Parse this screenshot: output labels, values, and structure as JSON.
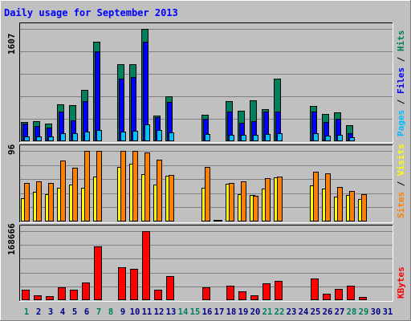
{
  "title": "Daily usage for September 2013",
  "colors": {
    "hits": "#00805c",
    "files": "#0000ff",
    "pages": "#00c0ff",
    "visits": "#ffff00",
    "sites": "#ff8000",
    "kbytes": "#ff0000",
    "weekend_day_label": "#00805c",
    "weekday_label": "#000080"
  },
  "chart_data": [
    {
      "type": "bar",
      "panel": "hits-files-pages",
      "ymax_label": "1607",
      "ymax": 1607,
      "legend": [
        "Pages",
        "Files",
        "Hits"
      ],
      "categories": [
        "1",
        "2",
        "3",
        "4",
        "5",
        "6",
        "7",
        "8",
        "9",
        "10",
        "11",
        "12",
        "13",
        "14",
        "15",
        "16",
        "17",
        "18",
        "19",
        "20",
        "21",
        "22",
        "23",
        "24",
        "25",
        "26",
        "27",
        "28",
        "29",
        "30",
        "31"
      ],
      "weekend_days": [
        1,
        7,
        8,
        14,
        15,
        21,
        22,
        28,
        29
      ],
      "series": [
        {
          "name": "Hits",
          "values": [
            270,
            290,
            250,
            530,
            520,
            730,
            1420,
            0,
            1100,
            1100,
            1607,
            370,
            640,
            0,
            0,
            380,
            0,
            570,
            440,
            590,
            460,
            900,
            0,
            0,
            500,
            390,
            410,
            230,
            0,
            0,
            0
          ]
        },
        {
          "name": "Files",
          "values": [
            250,
            220,
            200,
            420,
            300,
            570,
            1290,
            0,
            900,
            920,
            1420,
            340,
            560,
            0,
            0,
            320,
            0,
            420,
            260,
            290,
            420,
            430,
            0,
            0,
            430,
            270,
            320,
            120,
            0,
            0,
            0
          ]
        },
        {
          "name": "Pages",
          "values": [
            70,
            70,
            70,
            120,
            120,
            140,
            160,
            0,
            140,
            150,
            240,
            160,
            130,
            0,
            0,
            100,
            5,
            90,
            90,
            90,
            100,
            110,
            0,
            0,
            110,
            80,
            90,
            60,
            0,
            0,
            0
          ]
        }
      ]
    },
    {
      "type": "bar",
      "panel": "visits-sites",
      "ymax_label": "96",
      "ymax": 96,
      "legend": [
        "Sites",
        "Visits"
      ],
      "categories": [
        "1",
        "2",
        "3",
        "4",
        "5",
        "6",
        "7",
        "8",
        "9",
        "10",
        "11",
        "12",
        "13",
        "14",
        "15",
        "16",
        "17",
        "18",
        "19",
        "20",
        "21",
        "22",
        "23",
        "24",
        "25",
        "26",
        "27",
        "28",
        "29",
        "30",
        "31"
      ],
      "series": [
        {
          "name": "Visits",
          "values": [
            32,
            40,
            37,
            46,
            50,
            46,
            61,
            0,
            74,
            79,
            64,
            50,
            62,
            0,
            0,
            46,
            2,
            51,
            37,
            36,
            45,
            60,
            0,
            0,
            49,
            45,
            34,
            36,
            30,
            0,
            0
          ]
        },
        {
          "name": "Sites",
          "values": [
            52,
            55,
            52,
            83,
            73,
            96,
            96,
            0,
            96,
            96,
            94,
            84,
            63,
            0,
            0,
            74,
            2,
            52,
            54,
            35,
            59,
            61,
            0,
            0,
            68,
            65,
            47,
            41,
            37,
            0,
            0
          ]
        }
      ]
    },
    {
      "type": "bar",
      "panel": "kbytes",
      "ymax_label": "168666",
      "ymax": 168666,
      "legend": [
        "KBytes"
      ],
      "categories": [
        "1",
        "2",
        "3",
        "4",
        "5",
        "6",
        "7",
        "8",
        "9",
        "10",
        "11",
        "12",
        "13",
        "14",
        "15",
        "16",
        "17",
        "18",
        "19",
        "20",
        "21",
        "22",
        "23",
        "24",
        "25",
        "26",
        "27",
        "28",
        "29",
        "30",
        "31"
      ],
      "series": [
        {
          "name": "KBytes",
          "values": [
            25000,
            12000,
            9000,
            31000,
            25000,
            44000,
            132000,
            0,
            80000,
            77000,
            168666,
            26000,
            59000,
            0,
            0,
            31000,
            2000,
            35000,
            21000,
            12000,
            41000,
            48000,
            0,
            0,
            52000,
            16000,
            27000,
            35000,
            8000,
            0,
            0
          ]
        }
      ]
    }
  ]
}
